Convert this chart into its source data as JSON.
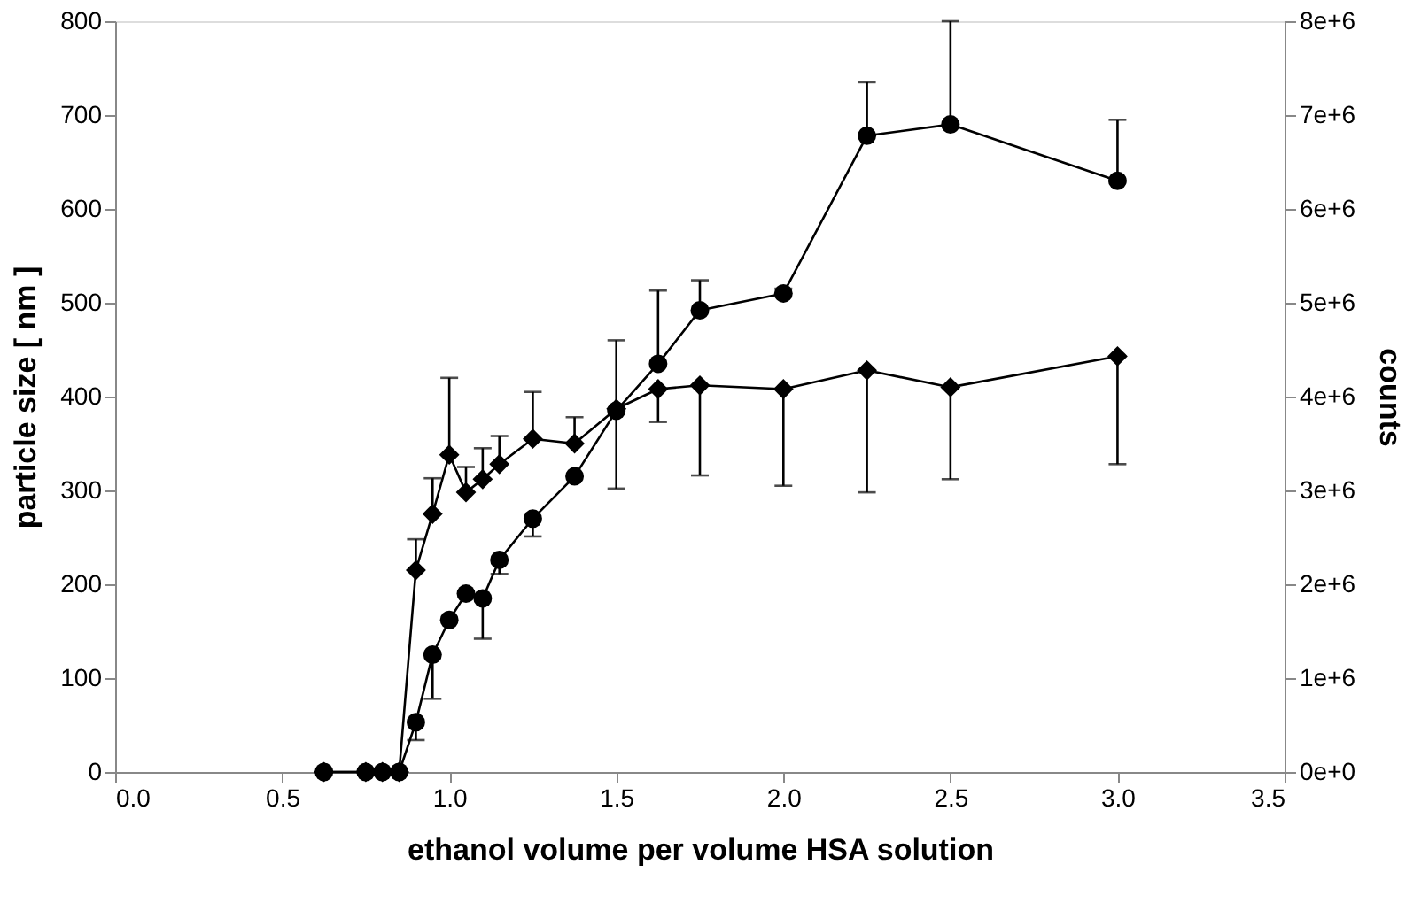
{
  "chart_data": {
    "type": "line",
    "xlabel": "ethanol volume per volume HSA solution",
    "ylabel": "particle size [ nm ]",
    "y2label": "counts",
    "xlim": [
      0,
      3.5
    ],
    "xticks": [
      {
        "value": 0,
        "label": "0.0"
      },
      {
        "value": 0.5,
        "label": "0.5"
      },
      {
        "value": 1,
        "label": "1.0"
      },
      {
        "value": 1.5,
        "label": "1.5"
      },
      {
        "value": 2,
        "label": "2.0"
      },
      {
        "value": 2.5,
        "label": "2.5"
      },
      {
        "value": 3,
        "label": "3.0"
      },
      {
        "value": 3.5,
        "label": "3.5"
      }
    ],
    "ylim": [
      0,
      800
    ],
    "yticks": [
      0,
      100,
      200,
      300,
      400,
      500,
      600,
      700,
      800
    ],
    "y2lim": [
      0,
      8000000
    ],
    "y2ticks": [
      {
        "value": 0,
        "label": "0e+0"
      },
      {
        "value": 1000000,
        "label": "1e+6"
      },
      {
        "value": 2000000,
        "label": "2e+6"
      },
      {
        "value": 3000000,
        "label": "3e+6"
      },
      {
        "value": 4000000,
        "label": "4e+6"
      },
      {
        "value": 5000000,
        "label": "5e+6"
      },
      {
        "value": 6000000,
        "label": "6e+6"
      },
      {
        "value": 7000000,
        "label": "7e+6"
      },
      {
        "value": 8000000,
        "label": "8e+6"
      }
    ],
    "grid": false,
    "line_style": "solid",
    "series": [
      {
        "color": "#000000",
        "marker": "circle",
        "x": [
          0.625,
          0.75,
          0.8,
          0.85,
          0.9,
          0.95,
          1.0,
          1.05,
          1.1,
          1.15,
          1.25,
          1.375,
          1.5,
          1.625,
          1.75,
          2.0,
          2.25,
          2.5,
          3.0
        ],
        "values": [
          0,
          0,
          0,
          0,
          53,
          125,
          162,
          190,
          185,
          226,
          270,
          315,
          385,
          435,
          492,
          510,
          678,
          690,
          630
        ],
        "errors": [
          null,
          null,
          null,
          null,
          [
            34,
            53
          ],
          [
            78,
            125
          ],
          null,
          null,
          [
            142,
            185
          ],
          [
            211,
            226
          ],
          [
            251,
            270
          ],
          null,
          null,
          [
            435,
            513
          ],
          [
            492,
            524
          ],
          [
            510,
            515
          ],
          [
            678,
            735
          ],
          [
            690,
            800
          ],
          [
            630,
            695
          ]
        ]
      },
      {
        "color": "#000000",
        "marker": "diamond",
        "axis": "y2",
        "x": [
          0.625,
          0.75,
          0.8,
          0.85,
          0.9,
          0.95,
          1.0,
          1.05,
          1.1,
          1.15,
          1.25,
          1.375,
          1.5,
          1.625,
          1.75,
          2.0,
          2.25,
          2.5,
          3.0
        ],
        "values": [
          0,
          0,
          0,
          0,
          2150000,
          2750000,
          3380000,
          2980000,
          3120000,
          3280000,
          3550000,
          3500000,
          3870000,
          4080000,
          4120000,
          4080000,
          4280000,
          4100000,
          4430000
        ],
        "errors": [
          null,
          null,
          null,
          null,
          [
            2150000,
            2480000
          ],
          [
            2750000,
            3130000
          ],
          [
            3380000,
            4200000
          ],
          [
            2980000,
            3250000
          ],
          [
            3120000,
            3450000
          ],
          [
            3280000,
            3580000
          ],
          [
            3550000,
            4050000
          ],
          [
            3500000,
            3780000
          ],
          [
            3020000,
            4600000
          ],
          [
            3730000,
            4080000
          ],
          [
            3160000,
            4120000
          ],
          [
            3050000,
            4080000
          ],
          [
            2980000,
            4280000
          ],
          [
            3120000,
            4100000
          ],
          [
            3280000,
            4430000
          ]
        ]
      }
    ]
  }
}
